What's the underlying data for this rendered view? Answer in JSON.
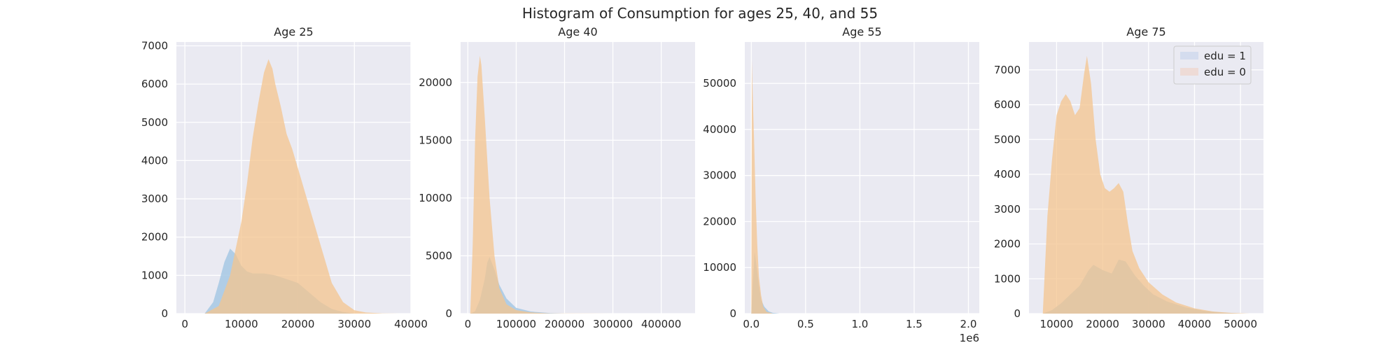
{
  "figure": {
    "suptitle": "Histogram of Consumption for ages 25, 40, and 55"
  },
  "colors": {
    "background": "#eaeaf2",
    "grid": "#ffffff",
    "edu1": "#a6c8e4",
    "edu0": "#f4c48e",
    "overlap": "#c5c2a0"
  },
  "legend": {
    "placement": "top-right of Age 75 panel",
    "items": [
      {
        "label": "edu = 1",
        "color": "#d4dcee"
      },
      {
        "label": "edu = 0",
        "color": "#eedbd6"
      }
    ]
  },
  "chart_data": [
    {
      "type": "area",
      "title": "Age 25",
      "xlim": [
        -1500,
        40000
      ],
      "ylim": [
        0,
        7100
      ],
      "xticks": [
        0,
        10000,
        20000,
        30000,
        40000
      ],
      "xtick_labels": [
        "0",
        "10000",
        "20000",
        "30000",
        "40000"
      ],
      "yticks": [
        0,
        1000,
        2000,
        3000,
        4000,
        5000,
        6000,
        7000
      ],
      "ytick_labels": [
        "0",
        "1000",
        "2000",
        "3000",
        "4000",
        "5000",
        "6000",
        "7000"
      ],
      "offset_label": "",
      "series": [
        {
          "name": "edu = 1",
          "x": [
            3500,
            5000,
            6000,
            7000,
            8000,
            9000,
            10000,
            11000,
            12000,
            14000,
            16000,
            18000,
            20000,
            22000,
            24000,
            26000,
            28000,
            30000
          ],
          "y": [
            0,
            300,
            800,
            1350,
            1700,
            1550,
            1250,
            1100,
            1050,
            1050,
            1000,
            900,
            800,
            550,
            300,
            120,
            40,
            0
          ]
        },
        {
          "name": "edu = 0",
          "x": [
            3500,
            6000,
            8000,
            10000,
            11000,
            12000,
            13000,
            14000,
            14800,
            15500,
            16000,
            17000,
            18000,
            19000,
            20000,
            22000,
            24000,
            26000,
            28000,
            30000,
            32000,
            35000,
            38000
          ],
          "y": [
            0,
            200,
            1000,
            2400,
            3400,
            4600,
            5500,
            6300,
            6650,
            6400,
            6000,
            5400,
            4700,
            4300,
            3800,
            2800,
            1800,
            800,
            300,
            90,
            30,
            5,
            0
          ]
        }
      ]
    },
    {
      "type": "area",
      "title": "Age 40",
      "xlim": [
        -15000,
        470000
      ],
      "ylim": [
        0,
        23500
      ],
      "xticks": [
        0,
        100000,
        200000,
        300000,
        400000
      ],
      "xtick_labels": [
        "0",
        "100000",
        "200000",
        "300000",
        "400000"
      ],
      "yticks": [
        0,
        5000,
        10000,
        15000,
        20000
      ],
      "ytick_labels": [
        "0",
        "5000",
        "10000",
        "15000",
        "20000"
      ],
      "offset_label": "",
      "series": [
        {
          "name": "edu = 1",
          "x": [
            5000,
            15000,
            25000,
            35000,
            40000,
            45000,
            55000,
            65000,
            80000,
            100000,
            130000,
            170000,
            200000
          ],
          "y": [
            0,
            200,
            1200,
            3000,
            4400,
            4900,
            3800,
            2500,
            1300,
            500,
            180,
            40,
            0
          ]
        },
        {
          "name": "edu = 0",
          "x": [
            5000,
            10000,
            15000,
            20000,
            25000,
            28000,
            35000,
            45000,
            55000,
            65000,
            80000,
            100000,
            130000,
            170000,
            250000,
            300000
          ],
          "y": [
            0,
            6000,
            15000,
            20500,
            22300,
            21500,
            17000,
            10000,
            5000,
            2200,
            800,
            300,
            100,
            20,
            5,
            0
          ]
        }
      ]
    },
    {
      "type": "area",
      "title": "Age 55",
      "xlim": [
        -60000,
        2100000
      ],
      "ylim": [
        0,
        59000
      ],
      "xticks": [
        0,
        500000,
        1000000,
        1500000,
        2000000
      ],
      "xtick_labels": [
        "0.0",
        "0.5",
        "1.0",
        "1.5",
        "2.0"
      ],
      "yticks": [
        0,
        10000,
        20000,
        30000,
        40000,
        50000
      ],
      "ytick_labels": [
        "0",
        "10000",
        "20000",
        "30000",
        "40000",
        "50000"
      ],
      "offset_label": "1e6",
      "series": [
        {
          "name": "edu = 1",
          "x": [
            0,
            10000,
            30000,
            50000,
            70000,
            90000,
            120000,
            160000,
            200000,
            260000
          ],
          "y": [
            0,
            5000,
            13500,
            10000,
            6000,
            3000,
            1500,
            500,
            150,
            0
          ]
        },
        {
          "name": "edu = 0",
          "x": [
            0,
            5000,
            12000,
            25000,
            40000,
            55000,
            70000,
            90000,
            110000,
            140000,
            200000
          ],
          "y": [
            0,
            55000,
            48000,
            38000,
            25000,
            15000,
            8000,
            4000,
            1500,
            400,
            0
          ]
        }
      ]
    },
    {
      "type": "area",
      "title": "Age 75",
      "xlim": [
        4000,
        55000
      ],
      "ylim": [
        0,
        7800
      ],
      "xticks": [
        10000,
        20000,
        30000,
        40000,
        50000
      ],
      "xtick_labels": [
        "10000",
        "20000",
        "30000",
        "40000",
        "50000"
      ],
      "yticks": [
        0,
        1000,
        2000,
        3000,
        4000,
        5000,
        6000,
        7000
      ],
      "ytick_labels": [
        "0",
        "1000",
        "2000",
        "3000",
        "4000",
        "5000",
        "6000",
        "7000"
      ],
      "offset_label": "",
      "series": [
        {
          "name": "edu = 1",
          "x": [
            7000,
            9000,
            11000,
            13000,
            15000,
            17000,
            18000,
            20000,
            22000,
            23500,
            25000,
            27000,
            29000,
            31000,
            34000,
            38000,
            42000,
            46000,
            50000
          ],
          "y": [
            0,
            100,
            300,
            550,
            800,
            1250,
            1400,
            1250,
            1150,
            1550,
            1500,
            1100,
            800,
            550,
            350,
            180,
            80,
            30,
            0
          ]
        },
        {
          "name": "edu = 0",
          "x": [
            7000,
            8000,
            9000,
            10000,
            11000,
            12000,
            13000,
            14000,
            15000,
            16000,
            16600,
            17500,
            18500,
            19500,
            20500,
            21500,
            22500,
            23500,
            24500,
            25500,
            26500,
            28000,
            30000,
            33000,
            36000,
            40000,
            44000,
            48000,
            52000
          ],
          "y": [
            0,
            2800,
            4400,
            5700,
            6100,
            6300,
            6100,
            5700,
            5900,
            6900,
            7400,
            6600,
            5000,
            4000,
            3600,
            3500,
            3600,
            3750,
            3500,
            2600,
            1800,
            1300,
            900,
            550,
            320,
            150,
            60,
            20,
            0
          ]
        }
      ]
    }
  ]
}
